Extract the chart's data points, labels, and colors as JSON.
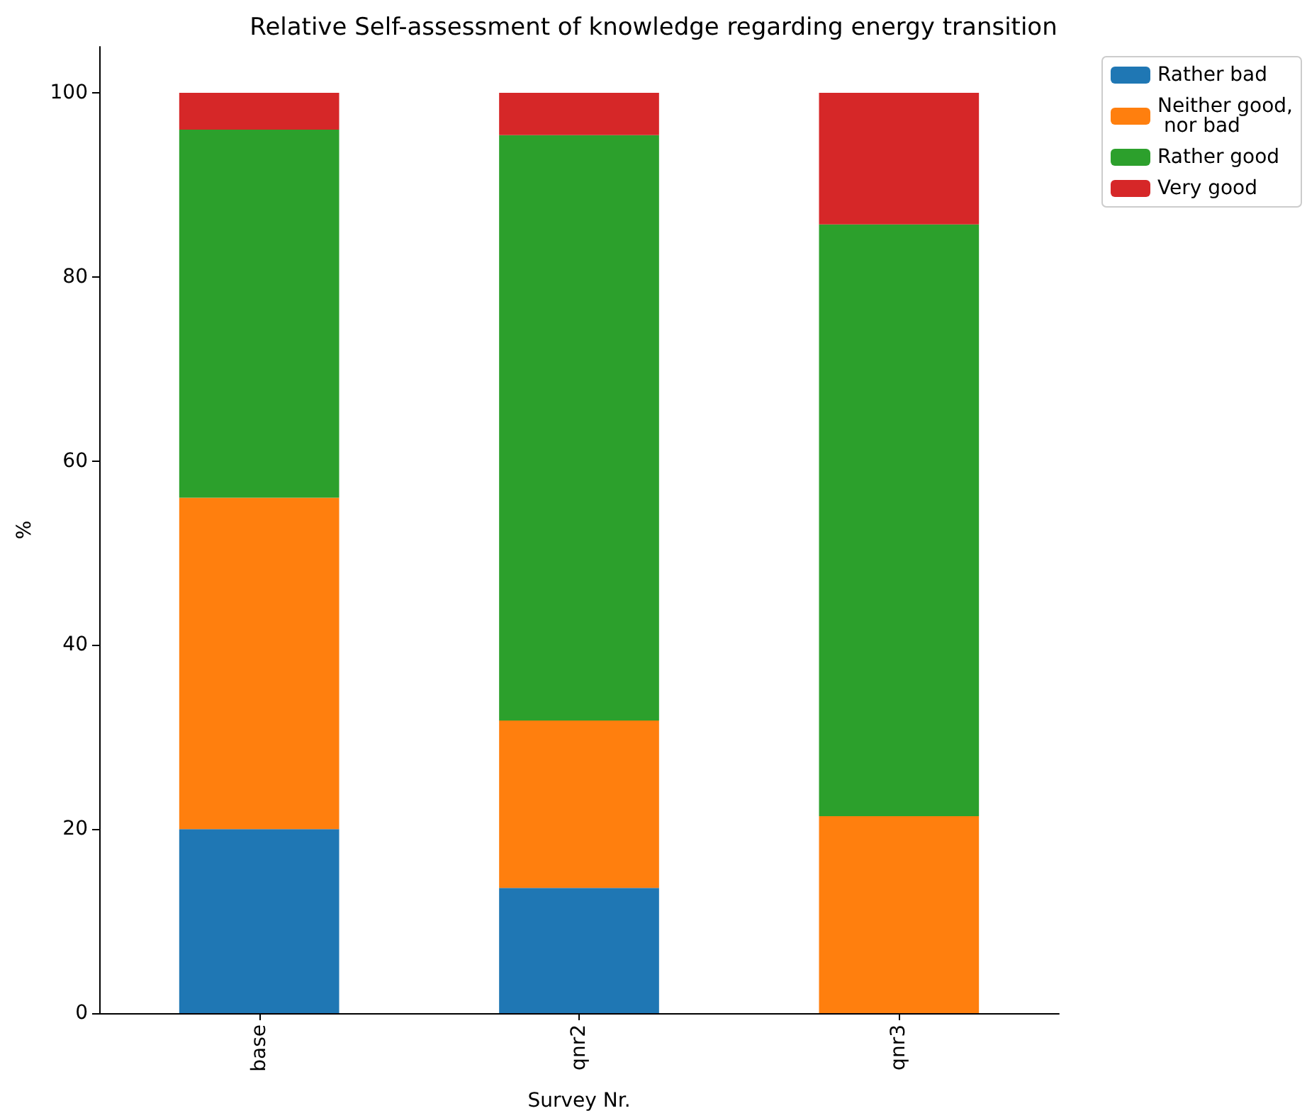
{
  "chart_data": {
    "type": "bar",
    "stacked": true,
    "title": "Relative Self-assessment of knowledge regarding energy transition",
    "xlabel": "Survey Nr.",
    "ylabel": "%",
    "categories": [
      "base",
      "qnr2",
      "qnr3"
    ],
    "series": [
      {
        "name": "Rather bad",
        "color": "#1f77b4",
        "values": [
          20,
          13.6,
          0
        ]
      },
      {
        "name": "Neither good,\n nor bad",
        "color": "#ff7f0e",
        "values": [
          36,
          18.2,
          21.4
        ]
      },
      {
        "name": "Rather good",
        "color": "#2ca02c",
        "values": [
          40,
          63.6,
          64.3
        ]
      },
      {
        "name": "Very good",
        "color": "#d62728",
        "values": [
          4,
          4.6,
          14.3
        ]
      }
    ],
    "ylim": [
      0,
      105
    ],
    "yticks": [
      0,
      20,
      40,
      60,
      80,
      100
    ],
    "grid": false,
    "legend": "top right"
  }
}
